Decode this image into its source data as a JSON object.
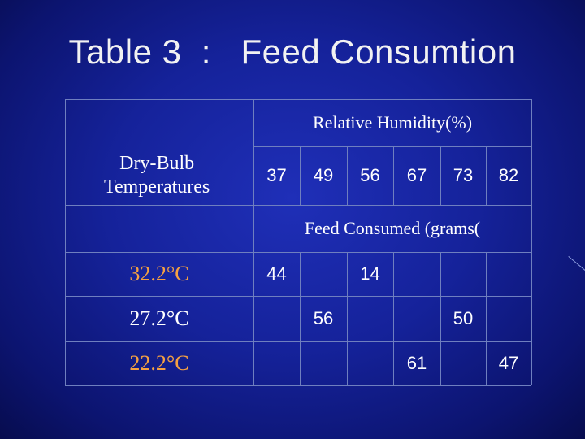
{
  "slide": {
    "title": "Table 3  :   Feed Consumtion"
  },
  "table": {
    "humidity_header": "Relative Humidity(%)",
    "row_header": "Dry-Bulb\nTemperatures",
    "humidity_values": [
      "37",
      "49",
      "56",
      "67",
      "73",
      "82"
    ],
    "feed_header": "Feed Consumed (grams(",
    "rows": [
      {
        "temperature": "32.2°C",
        "values": [
          "44",
          "",
          "14",
          "",
          "",
          ""
        ]
      },
      {
        "temperature": "27.2°C",
        "values": [
          "",
          "56",
          "",
          "",
          "50",
          ""
        ]
      },
      {
        "temperature": "22.2°C",
        "values": [
          "",
          "",
          "",
          "61",
          "",
          "47"
        ]
      }
    ],
    "colors": {
      "background": "#15229a",
      "grid": "#6f7fbf",
      "text": "#ffffff",
      "highlight_temperature": "#f5a142"
    }
  }
}
